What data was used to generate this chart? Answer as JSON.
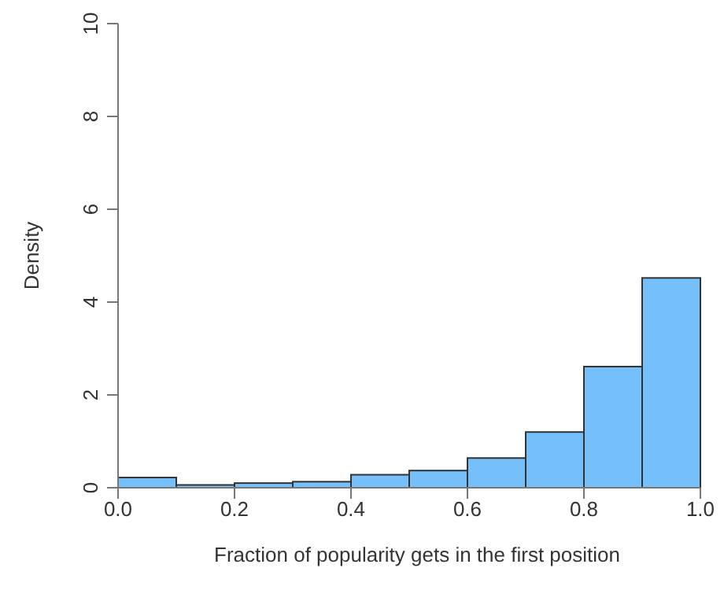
{
  "chart_data": {
    "type": "histogram",
    "xlabel": "Fraction of popularity gets in the first position",
    "ylabel": "Density",
    "bins": [
      0,
      0.1,
      0.2,
      0.3,
      0.4,
      0.5,
      0.6,
      0.7,
      0.8,
      0.9,
      1.0
    ],
    "values": [
      0.22,
      0.06,
      0.1,
      0.13,
      0.28,
      0.37,
      0.64,
      1.2,
      2.61,
      4.52
    ],
    "color": "#75bffa",
    "xlim": [
      0,
      1
    ],
    "xticks": [
      {
        "value": 0,
        "label": "0.0"
      },
      {
        "value": 0.2,
        "label": "0.2"
      },
      {
        "value": 0.4,
        "label": "0.4"
      },
      {
        "value": 0.6,
        "label": "0.6"
      },
      {
        "value": 0.8,
        "label": "0.8"
      },
      {
        "value": 1,
        "label": "1.0"
      }
    ],
    "ylim": [
      0,
      10
    ],
    "yticks": [
      0,
      2,
      4,
      6,
      8,
      10
    ],
    "grid": false,
    "legend": false
  }
}
